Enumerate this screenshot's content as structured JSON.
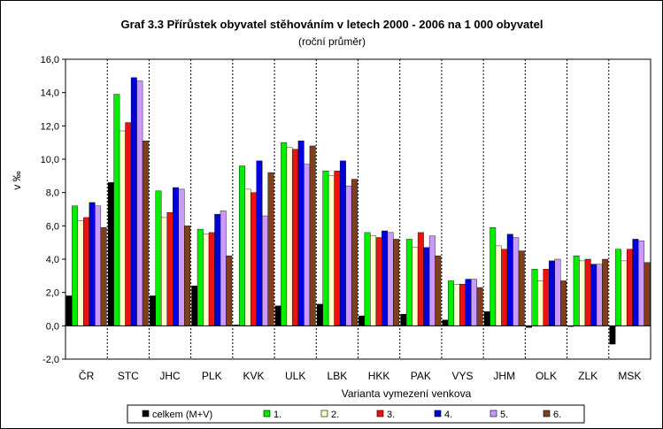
{
  "chart_data": {
    "type": "bar",
    "title": "Graf 3.3 Přírůstek obyvatel stěhováním v letech 2000 - 2006 na 1 000 obyvatel",
    "subtitle": "(roční průměr)",
    "xlabel": "Varianta vymezení venkova",
    "ylabel": "v ‰",
    "ylim": [
      -2,
      16
    ],
    "yticks": [
      "-2,0",
      "0,0",
      "2,0",
      "4,0",
      "6,0",
      "8,0",
      "10,0",
      "12,0",
      "14,0",
      "16,0"
    ],
    "grid": "vertical dashed",
    "legend": "bottom",
    "categories": [
      "ČR",
      "STC",
      "JHC",
      "PLK",
      "KVK",
      "ULK",
      "LBK",
      "HKK",
      "PAK",
      "VYS",
      "JHM",
      "OLK",
      "ZLK",
      "MSK"
    ],
    "series": [
      {
        "name": "celkem (M+V)",
        "color": "#000000",
        "values": [
          1.8,
          8.6,
          1.8,
          2.4,
          0.05,
          1.2,
          1.3,
          0.6,
          0.7,
          0.35,
          0.85,
          -0.1,
          -0.05,
          -1.1
        ]
      },
      {
        "name": "1.",
        "color": "#00ee00",
        "values": [
          7.2,
          13.9,
          8.1,
          5.8,
          9.6,
          11.0,
          9.3,
          5.6,
          5.2,
          2.7,
          5.9,
          3.4,
          4.2,
          4.6
        ]
      },
      {
        "name": "2.",
        "color": "#ffffcc",
        "values": [
          6.3,
          11.7,
          6.5,
          5.5,
          8.2,
          10.7,
          9.0,
          5.4,
          4.7,
          2.5,
          4.8,
          2.7,
          3.9,
          3.9
        ]
      },
      {
        "name": "3.",
        "color": "#ee1111",
        "values": [
          6.5,
          12.2,
          6.8,
          5.6,
          8.0,
          10.6,
          9.3,
          5.3,
          5.6,
          2.5,
          4.6,
          3.4,
          4.0,
          4.6
        ]
      },
      {
        "name": "4.",
        "color": "#0000dd",
        "values": [
          7.4,
          14.9,
          8.3,
          6.7,
          9.9,
          11.1,
          9.9,
          5.7,
          4.7,
          2.8,
          5.5,
          3.9,
          3.7,
          5.2
        ]
      },
      {
        "name": "5.",
        "color": "#cc99ff",
        "values": [
          7.2,
          14.7,
          8.2,
          6.9,
          6.6,
          9.7,
          8.4,
          5.6,
          5.4,
          2.8,
          5.3,
          4.0,
          3.7,
          5.1
        ]
      },
      {
        "name": "6.",
        "color": "#7f3f1f",
        "values": [
          5.9,
          11.1,
          6.0,
          4.2,
          9.2,
          10.8,
          8.8,
          5.2,
          4.2,
          2.3,
          4.5,
          2.7,
          4.0,
          3.8
        ]
      }
    ]
  }
}
